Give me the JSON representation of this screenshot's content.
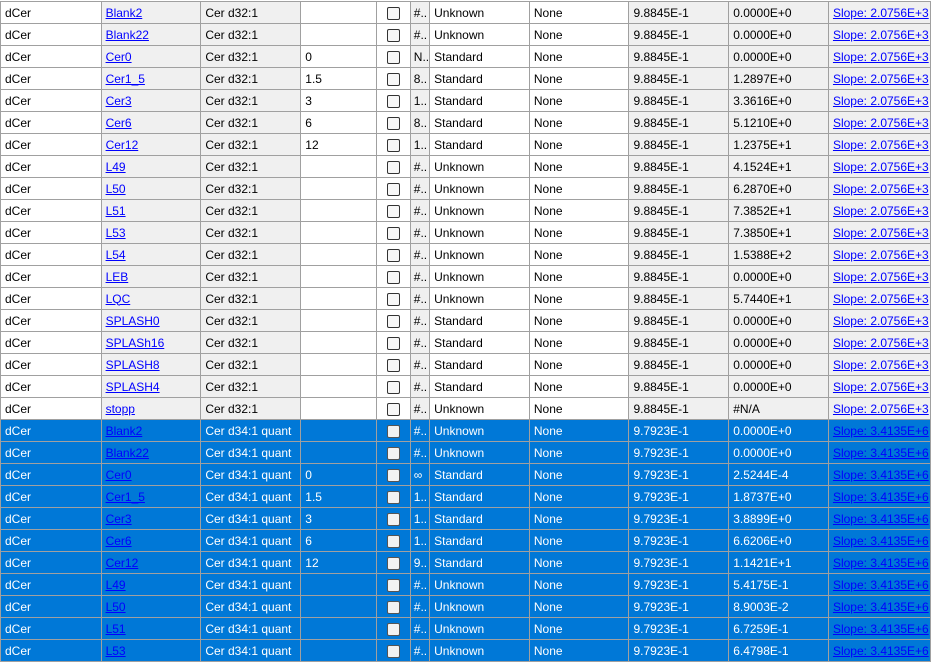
{
  "colors": {
    "selected_row": "#0078d7",
    "link": "#0000ff",
    "alt_column": "#f0f0f0"
  },
  "rows": [
    {
      "type": "dCer",
      "name": "Blank2",
      "compound": "Cer d32:1",
      "conc": "",
      "flag": "#..",
      "sample_type": "Unknown",
      "dilution": "None",
      "r2": "9.8845E-1",
      "value": "0.0000E+0",
      "slope": "Slope: 2.0756E+3",
      "selected": false
    },
    {
      "type": "dCer",
      "name": "Blank22",
      "compound": "Cer d32:1",
      "conc": "",
      "flag": "#..",
      "sample_type": "Unknown",
      "dilution": "None",
      "r2": "9.8845E-1",
      "value": "0.0000E+0",
      "slope": "Slope: 2.0756E+3",
      "selected": false
    },
    {
      "type": "dCer",
      "name": "Cer0",
      "compound": "Cer d32:1",
      "conc": "0",
      "flag": "N..",
      "sample_type": "Standard",
      "dilution": "None",
      "r2": "9.8845E-1",
      "value": "0.0000E+0",
      "slope": "Slope: 2.0756E+3",
      "selected": false
    },
    {
      "type": "dCer",
      "name": "Cer1_5",
      "compound": "Cer d32:1",
      "conc": "1.5",
      "flag": "8..",
      "sample_type": "Standard",
      "dilution": "None",
      "r2": "9.8845E-1",
      "value": "1.2897E+0",
      "slope": "Slope: 2.0756E+3",
      "selected": false
    },
    {
      "type": "dCer",
      "name": "Cer3",
      "compound": "Cer d32:1",
      "conc": "3",
      "flag": "1..",
      "sample_type": "Standard",
      "dilution": "None",
      "r2": "9.8845E-1",
      "value": "3.3616E+0",
      "slope": "Slope: 2.0756E+3",
      "selected": false
    },
    {
      "type": "dCer",
      "name": "Cer6",
      "compound": "Cer d32:1",
      "conc": "6",
      "flag": "8..",
      "sample_type": "Standard",
      "dilution": "None",
      "r2": "9.8845E-1",
      "value": "5.1210E+0",
      "slope": "Slope: 2.0756E+3",
      "selected": false
    },
    {
      "type": "dCer",
      "name": "Cer12",
      "compound": "Cer d32:1",
      "conc": "12",
      "flag": "1..",
      "sample_type": "Standard",
      "dilution": "None",
      "r2": "9.8845E-1",
      "value": "1.2375E+1",
      "slope": "Slope: 2.0756E+3",
      "selected": false
    },
    {
      "type": "dCer",
      "name": "L49",
      "compound": "Cer d32:1",
      "conc": "",
      "flag": "#..",
      "sample_type": "Unknown",
      "dilution": "None",
      "r2": "9.8845E-1",
      "value": "4.1524E+1",
      "slope": "Slope: 2.0756E+3",
      "selected": false
    },
    {
      "type": "dCer",
      "name": "L50",
      "compound": "Cer d32:1",
      "conc": "",
      "flag": "#..",
      "sample_type": "Unknown",
      "dilution": "None",
      "r2": "9.8845E-1",
      "value": "6.2870E+0",
      "slope": "Slope: 2.0756E+3",
      "selected": false
    },
    {
      "type": "dCer",
      "name": "L51",
      "compound": "Cer d32:1",
      "conc": "",
      "flag": "#..",
      "sample_type": "Unknown",
      "dilution": "None",
      "r2": "9.8845E-1",
      "value": "7.3852E+1",
      "slope": "Slope: 2.0756E+3",
      "selected": false
    },
    {
      "type": "dCer",
      "name": "L53",
      "compound": "Cer d32:1",
      "conc": "",
      "flag": "#..",
      "sample_type": "Unknown",
      "dilution": "None",
      "r2": "9.8845E-1",
      "value": "7.3850E+1",
      "slope": "Slope: 2.0756E+3",
      "selected": false
    },
    {
      "type": "dCer",
      "name": "L54",
      "compound": "Cer d32:1",
      "conc": "",
      "flag": "#..",
      "sample_type": "Unknown",
      "dilution": "None",
      "r2": "9.8845E-1",
      "value": "1.5388E+2",
      "slope": "Slope: 2.0756E+3",
      "selected": false
    },
    {
      "type": "dCer",
      "name": "LEB",
      "compound": "Cer d32:1",
      "conc": "",
      "flag": "#..",
      "sample_type": "Unknown",
      "dilution": "None",
      "r2": "9.8845E-1",
      "value": "0.0000E+0",
      "slope": "Slope: 2.0756E+3",
      "selected": false
    },
    {
      "type": "dCer",
      "name": "LQC",
      "compound": "Cer d32:1",
      "conc": "",
      "flag": "#..",
      "sample_type": "Unknown",
      "dilution": "None",
      "r2": "9.8845E-1",
      "value": "5.7440E+1",
      "slope": "Slope: 2.0756E+3",
      "selected": false
    },
    {
      "type": "dCer",
      "name": "SPLASH0",
      "compound": "Cer d32:1",
      "conc": "",
      "flag": "#..",
      "sample_type": "Standard",
      "dilution": "None",
      "r2": "9.8845E-1",
      "value": "0.0000E+0",
      "slope": "Slope: 2.0756E+3",
      "selected": false
    },
    {
      "type": "dCer",
      "name": "SPLASh16",
      "compound": "Cer d32:1",
      "conc": "",
      "flag": "#..",
      "sample_type": "Standard",
      "dilution": "None",
      "r2": "9.8845E-1",
      "value": "0.0000E+0",
      "slope": "Slope: 2.0756E+3",
      "selected": false
    },
    {
      "type": "dCer",
      "name": "SPLASH8",
      "compound": "Cer d32:1",
      "conc": "",
      "flag": "#..",
      "sample_type": "Standard",
      "dilution": "None",
      "r2": "9.8845E-1",
      "value": "0.0000E+0",
      "slope": "Slope: 2.0756E+3",
      "selected": false
    },
    {
      "type": "dCer",
      "name": "SPLASH4",
      "compound": "Cer d32:1",
      "conc": "",
      "flag": "#..",
      "sample_type": "Standard",
      "dilution": "None",
      "r2": "9.8845E-1",
      "value": "0.0000E+0",
      "slope": "Slope: 2.0756E+3",
      "selected": false
    },
    {
      "type": "dCer",
      "name": "stopp",
      "compound": "Cer d32:1",
      "conc": "",
      "flag": "#..",
      "sample_type": "Unknown",
      "dilution": "None",
      "r2": "9.8845E-1",
      "value": "#N/A",
      "slope": "Slope: 2.0756E+3",
      "selected": false
    },
    {
      "type": "dCer",
      "name": "Blank2",
      "compound": "Cer d34:1 quant",
      "conc": "",
      "flag": "#..",
      "sample_type": "Unknown",
      "dilution": "None",
      "r2": "9.7923E-1",
      "value": "0.0000E+0",
      "slope": "Slope: 3.4135E+6",
      "selected": true
    },
    {
      "type": "dCer",
      "name": "Blank22",
      "compound": "Cer d34:1 quant",
      "conc": "",
      "flag": "#..",
      "sample_type": "Unknown",
      "dilution": "None",
      "r2": "9.7923E-1",
      "value": "0.0000E+0",
      "slope": "Slope: 3.4135E+6",
      "selected": true
    },
    {
      "type": "dCer",
      "name": "Cer0",
      "compound": "Cer d34:1 quant",
      "conc": "0",
      "flag": "∞",
      "sample_type": "Standard",
      "dilution": "None",
      "r2": "9.7923E-1",
      "value": "2.5244E-4",
      "slope": "Slope: 3.4135E+6",
      "selected": true
    },
    {
      "type": "dCer",
      "name": "Cer1_5",
      "compound": "Cer d34:1 quant",
      "conc": "1.5",
      "flag": "1..",
      "sample_type": "Standard",
      "dilution": "None",
      "r2": "9.7923E-1",
      "value": "1.8737E+0",
      "slope": "Slope: 3.4135E+6",
      "selected": true
    },
    {
      "type": "dCer",
      "name": "Cer3",
      "compound": "Cer d34:1 quant",
      "conc": "3",
      "flag": "1..",
      "sample_type": "Standard",
      "dilution": "None",
      "r2": "9.7923E-1",
      "value": "3.8899E+0",
      "slope": "Slope: 3.4135E+6",
      "selected": true
    },
    {
      "type": "dCer",
      "name": "Cer6",
      "compound": "Cer d34:1 quant",
      "conc": "6",
      "flag": "1..",
      "sample_type": "Standard",
      "dilution": "None",
      "r2": "9.7923E-1",
      "value": "6.6206E+0",
      "slope": "Slope: 3.4135E+6",
      "selected": true
    },
    {
      "type": "dCer",
      "name": "Cer12",
      "compound": "Cer d34:1 quant",
      "conc": "12",
      "flag": "9..",
      "sample_type": "Standard",
      "dilution": "None",
      "r2": "9.7923E-1",
      "value": "1.1421E+1",
      "slope": "Slope: 3.4135E+6",
      "selected": true
    },
    {
      "type": "dCer",
      "name": "L49",
      "compound": "Cer d34:1 quant",
      "conc": "",
      "flag": "#..",
      "sample_type": "Unknown",
      "dilution": "None",
      "r2": "9.7923E-1",
      "value": "5.4175E-1",
      "slope": "Slope: 3.4135E+6",
      "selected": true
    },
    {
      "type": "dCer",
      "name": "L50",
      "compound": "Cer d34:1 quant",
      "conc": "",
      "flag": "#..",
      "sample_type": "Unknown",
      "dilution": "None",
      "r2": "9.7923E-1",
      "value": "8.9003E-2",
      "slope": "Slope: 3.4135E+6",
      "selected": true
    },
    {
      "type": "dCer",
      "name": "L51",
      "compound": "Cer d34:1 quant",
      "conc": "",
      "flag": "#..",
      "sample_type": "Unknown",
      "dilution": "None",
      "r2": "9.7923E-1",
      "value": "6.7259E-1",
      "slope": "Slope: 3.4135E+6",
      "selected": true
    },
    {
      "type": "dCer",
      "name": "L53",
      "compound": "Cer d34:1 quant",
      "conc": "",
      "flag": "#..",
      "sample_type": "Unknown",
      "dilution": "None",
      "r2": "9.7923E-1",
      "value": "6.4798E-1",
      "slope": "Slope: 3.4135E+6",
      "selected": true
    }
  ]
}
